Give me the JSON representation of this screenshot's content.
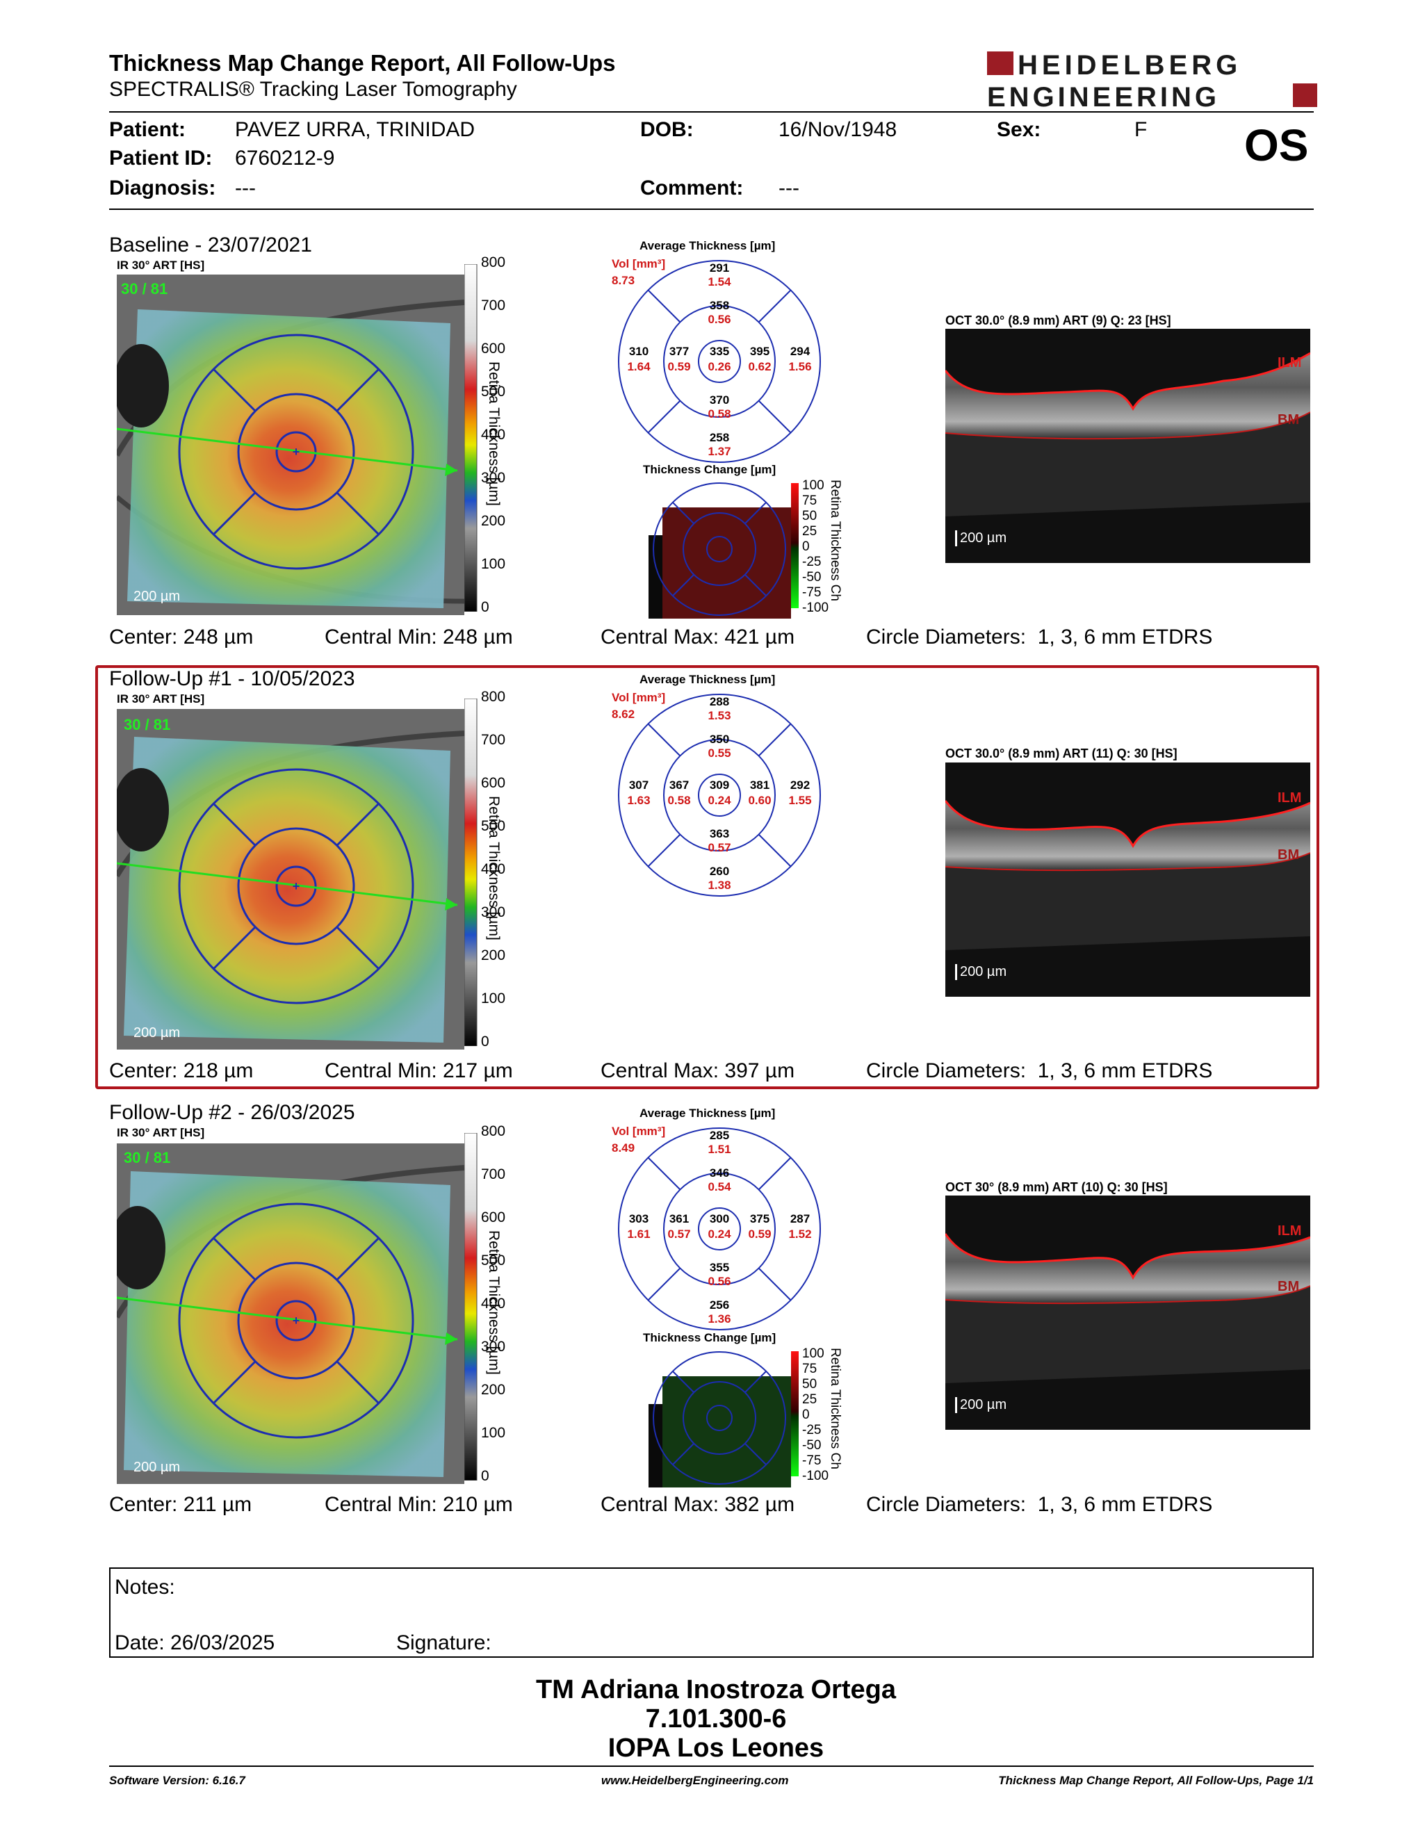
{
  "header": {
    "title": "Thickness Map Change Report, All Follow-Ups",
    "subtitle": "SPECTRALIS® Tracking Laser Tomography",
    "brand_line1": "HEIDELBERG",
    "brand_line2": "ENGINEERING",
    "brand_color": "#9b1c24"
  },
  "patient": {
    "patient_label": "Patient:",
    "patient_value": "PAVEZ URRA, TRINIDAD",
    "id_label": "Patient ID:",
    "id_value": "6760212-9",
    "diagnosis_label": "Diagnosis:",
    "diagnosis_value": "---",
    "dob_label": "DOB:",
    "dob_value": "16/Nov/1948",
    "comment_label": "Comment:",
    "comment_value": "---",
    "sex_label": "Sex:",
    "sex_value": "F",
    "eye": "OS"
  },
  "sections": [
    {
      "title": "Baseline - 23/07/2021",
      "ir_label": "IR 30° ART [HS]",
      "art_count": "30 / 81",
      "scale_label": "200 µm",
      "colorbar_title": "Retina Thickness [µm]",
      "colorbar_ticks": [
        "800",
        "700",
        "600",
        "500",
        "400",
        "300",
        "200",
        "100",
        "0"
      ],
      "avg_title": "Average Thickness [µm]",
      "vol_label": "Vol [mm³]",
      "vol_value": "8.73",
      "etdrs": {
        "center": {
          "t": "335",
          "v": "0.26"
        },
        "inner_sup": {
          "t": "358",
          "v": "0.56"
        },
        "inner_inf": {
          "t": "370",
          "v": "0.58"
        },
        "inner_nas": {
          "t": "377",
          "v": "0.59"
        },
        "inner_tem": {
          "t": "395",
          "v": "0.62"
        },
        "outer_sup": {
          "t": "291",
          "v": "1.54"
        },
        "outer_inf": {
          "t": "258",
          "v": "1.37"
        },
        "outer_nas": {
          "t": "310",
          "v": "1.64"
        },
        "outer_tem": {
          "t": "294",
          "v": "1.56"
        }
      },
      "change_title": "Thickness Change [µm]",
      "change_bar_title": "Retina Thickness Ch",
      "change_ticks": [
        "100",
        "75",
        "50",
        "25",
        "0",
        "-25",
        "-50",
        "-75",
        "-100"
      ],
      "change_tint": "#5a1010",
      "oct_label": "OCT 30.0° (8.9 mm) ART (9) Q: 23 [HS]",
      "oct_ilm": "ILM",
      "oct_bm": "BM",
      "oct_scale": "200 µm",
      "center": "Center: 248 µm",
      "central_min": "Central Min: 248 µm",
      "central_max": "Central Max: 421 µm",
      "circle_diameters": "Circle Diameters:  1, 3, 6 mm ETDRS"
    },
    {
      "title": "Follow-Up #1 - 10/05/2023",
      "ir_label": "IR 30° ART [HS]",
      "art_count": "30 / 81",
      "scale_label": "200 µm",
      "colorbar_title": "Retina Thickness [µm]",
      "colorbar_ticks": [
        "800",
        "700",
        "600",
        "500",
        "400",
        "300",
        "200",
        "100",
        "0"
      ],
      "avg_title": "Average Thickness [µm]",
      "vol_label": "Vol [mm³]",
      "vol_value": "8.62",
      "etdrs": {
        "center": {
          "t": "309",
          "v": "0.24"
        },
        "inner_sup": {
          "t": "350",
          "v": "0.55"
        },
        "inner_inf": {
          "t": "363",
          "v": "0.57"
        },
        "inner_nas": {
          "t": "367",
          "v": "0.58"
        },
        "inner_tem": {
          "t": "381",
          "v": "0.60"
        },
        "outer_sup": {
          "t": "288",
          "v": "1.53"
        },
        "outer_inf": {
          "t": "260",
          "v": "1.38"
        },
        "outer_nas": {
          "t": "307",
          "v": "1.63"
        },
        "outer_tem": {
          "t": "292",
          "v": "1.55"
        }
      },
      "oct_label": "OCT 30.0° (8.9 mm) ART (11) Q: 30 [HS]",
      "oct_ilm": "ILM",
      "oct_bm": "BM",
      "oct_scale": "200 µm",
      "center": "Center: 218 µm",
      "central_min": "Central Min: 217 µm",
      "central_max": "Central Max: 397 µm",
      "circle_diameters": "Circle Diameters:  1, 3, 6 mm ETDRS"
    },
    {
      "title": "Follow-Up #2 - 26/03/2025",
      "ir_label": "IR 30° ART [HS]",
      "art_count": "30 / 81",
      "scale_label": "200 µm",
      "colorbar_title": "Retina Thickness [µm]",
      "colorbar_ticks": [
        "800",
        "700",
        "600",
        "500",
        "400",
        "300",
        "200",
        "100",
        "0"
      ],
      "avg_title": "Average Thickness [µm]",
      "vol_label": "Vol [mm³]",
      "vol_value": "8.49",
      "etdrs": {
        "center": {
          "t": "300",
          "v": "0.24"
        },
        "inner_sup": {
          "t": "346",
          "v": "0.54"
        },
        "inner_inf": {
          "t": "355",
          "v": "0.56"
        },
        "inner_nas": {
          "t": "361",
          "v": "0.57"
        },
        "inner_tem": {
          "t": "375",
          "v": "0.59"
        },
        "outer_sup": {
          "t": "285",
          "v": "1.51"
        },
        "outer_inf": {
          "t": "256",
          "v": "1.36"
        },
        "outer_nas": {
          "t": "303",
          "v": "1.61"
        },
        "outer_tem": {
          "t": "287",
          "v": "1.52"
        }
      },
      "change_title": "Thickness Change [µm]",
      "change_bar_title": "Retina Thickness Ch",
      "change_ticks": [
        "100",
        "75",
        "50",
        "25",
        "0",
        "-25",
        "-50",
        "-75",
        "-100"
      ],
      "change_tint": "#123812",
      "oct_label": "OCT 30° (8.9 mm) ART (10) Q: 30 [HS]",
      "oct_ilm": "ILM",
      "oct_bm": "BM",
      "oct_scale": "200 µm",
      "center": "Center: 211 µm",
      "central_min": "Central Min: 210 µm",
      "central_max": "Central Max: 382 µm",
      "circle_diameters": "Circle Diameters:  1, 3, 6 mm ETDRS"
    }
  ],
  "notes": {
    "notes_label": "Notes:",
    "date_label": "Date: 26/03/2025",
    "signature_label": "Signature:"
  },
  "signatory": {
    "name": "TM Adriana Inostroza Ortega",
    "id": "7.101.300-6",
    "org": "IOPA Los Leones"
  },
  "footer": {
    "software": "Software Version: 6.16.7",
    "url": "www.HeidelbergEngineering.com",
    "page": "Thickness Map Change Report, All Follow-Ups, Page 1/1"
  }
}
